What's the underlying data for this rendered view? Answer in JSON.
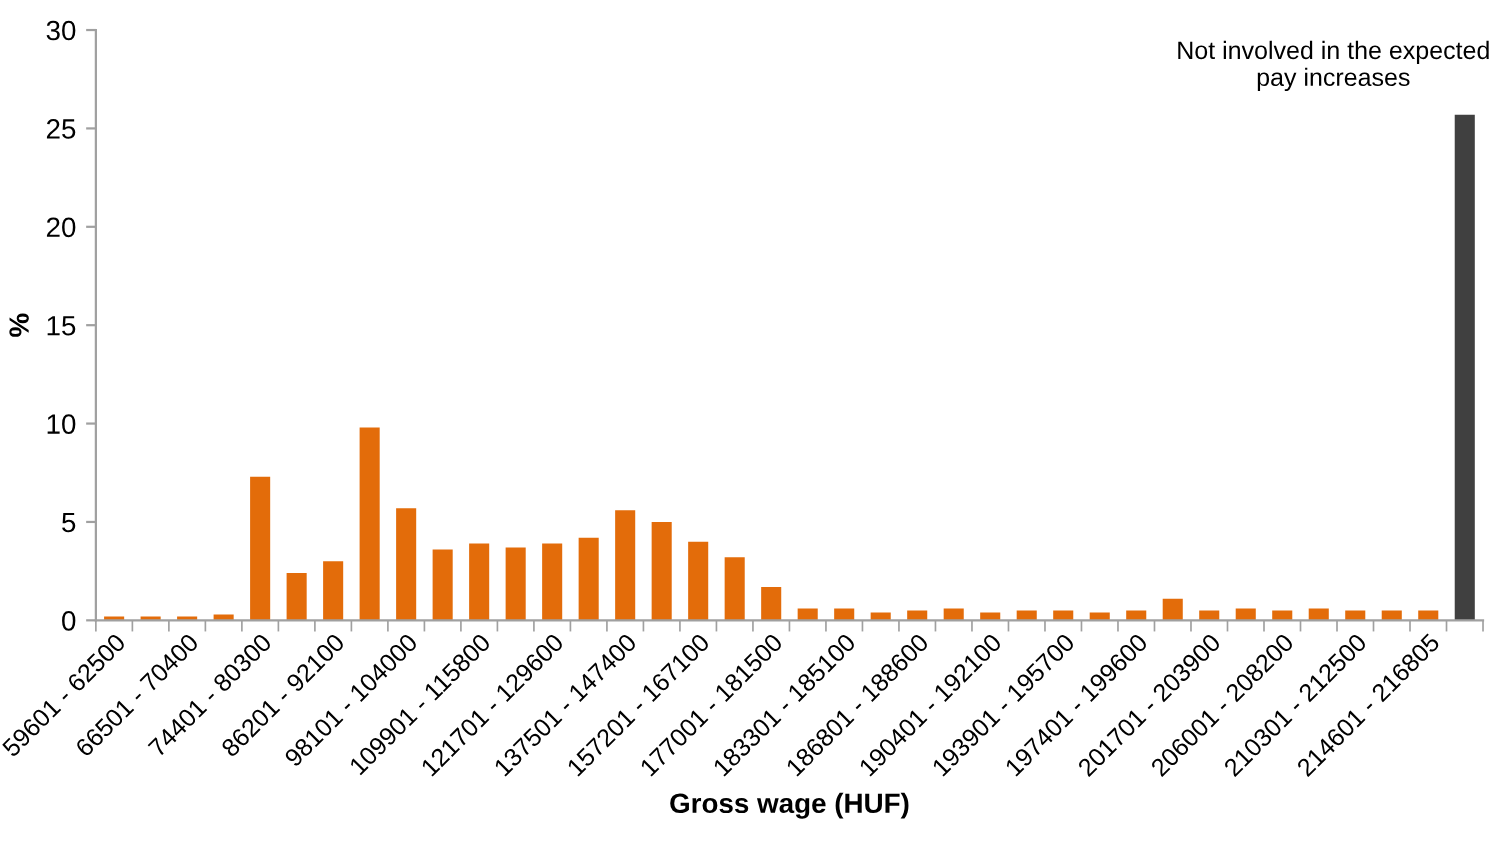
{
  "chart_data": {
    "type": "bar",
    "xlabel": "Gross wage (HUF)",
    "ylabel": "%",
    "categories": [
      "59601 - 62500",
      null,
      "66501 - 70400",
      null,
      "74401 - 80300",
      null,
      "86201 - 92100",
      null,
      "98101 - 104000",
      null,
      "109901 - 115800",
      null,
      "121701 - 129600",
      null,
      "137501 - 147400",
      null,
      "157201 - 167100",
      null,
      "177001 - 181500",
      null,
      "183301 - 185100",
      null,
      "186801 - 188600",
      null,
      "190401 - 192100",
      null,
      "193901 - 195700",
      null,
      "197401 - 199600",
      null,
      "201701 - 203900",
      null,
      "206001 - 208200",
      null,
      "210301 - 212500",
      null,
      "214601 - 216805",
      null
    ],
    "values": [
      0.2,
      0.2,
      0.2,
      0.3,
      7.3,
      2.4,
      3.0,
      9.8,
      5.7,
      3.6,
      3.9,
      3.7,
      3.9,
      4.2,
      5.6,
      5.0,
      4.0,
      3.2,
      1.7,
      0.6,
      0.6,
      0.4,
      0.5,
      0.6,
      0.4,
      0.5,
      0.5,
      0.4,
      0.5,
      1.1,
      0.5,
      0.6,
      0.5,
      0.6,
      0.5,
      0.5,
      0.5,
      25.7
    ],
    "colors": [
      "#e36c0a",
      "#e36c0a",
      "#e36c0a",
      "#e36c0a",
      "#e36c0a",
      "#e36c0a",
      "#e36c0a",
      "#e36c0a",
      "#e36c0a",
      "#e36c0a",
      "#e36c0a",
      "#e36c0a",
      "#e36c0a",
      "#e36c0a",
      "#e36c0a",
      "#e36c0a",
      "#e36c0a",
      "#e36c0a",
      "#e36c0a",
      "#e36c0a",
      "#e36c0a",
      "#e36c0a",
      "#e36c0a",
      "#e36c0a",
      "#e36c0a",
      "#e36c0a",
      "#e36c0a",
      "#e36c0a",
      "#e36c0a",
      "#e36c0a",
      "#e36c0a",
      "#e36c0a",
      "#e36c0a",
      "#e36c0a",
      "#e36c0a",
      "#e36c0a",
      "#e36c0a",
      "#404040"
    ],
    "annotations": [
      "Not involved in the expected\npay increases"
    ],
    "ylim": [
      0,
      30
    ],
    "yticks": [
      0,
      5,
      10,
      15,
      20,
      25,
      30
    ],
    "grid": false,
    "legend": false
  }
}
